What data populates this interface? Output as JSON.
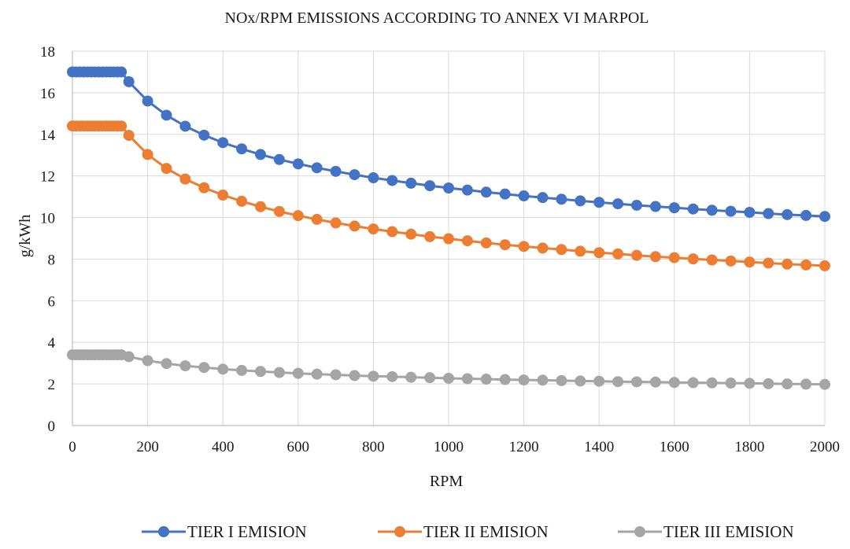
{
  "chart_data": {
    "type": "line",
    "title": "NOx/RPM EMISSIONS ACCORDING TO ANNEX VI MARPOL",
    "xlabel": "RPM",
    "ylabel": "g/kWh",
    "xlim": [
      0,
      2000
    ],
    "ylim": [
      0,
      18
    ],
    "x_ticks": [
      "0",
      "200",
      "400",
      "600",
      "800",
      "1000",
      "1200",
      "1400",
      "1600",
      "1800",
      "2000"
    ],
    "y_ticks": [
      "0",
      "2",
      "4",
      "6",
      "8",
      "10",
      "12",
      "14",
      "16",
      "18"
    ],
    "grid": true,
    "legend_position": "bottom",
    "x": [
      0,
      10,
      20,
      30,
      40,
      50,
      60,
      70,
      80,
      90,
      100,
      110,
      120,
      130,
      150,
      200,
      250,
      300,
      350,
      400,
      450,
      500,
      550,
      600,
      650,
      700,
      750,
      800,
      850,
      900,
      950,
      1000,
      1050,
      1100,
      1150,
      1200,
      1250,
      1300,
      1350,
      1400,
      1450,
      1500,
      1550,
      1600,
      1650,
      1700,
      1750,
      1800,
      1850,
      1900,
      1950,
      2000
    ],
    "series": [
      {
        "name": "TIER I EMISION",
        "color": "#4472C4",
        "values": [
          17,
          17,
          17,
          17,
          17,
          17,
          17,
          17,
          17,
          17,
          17,
          17,
          17,
          17,
          16.53,
          15.6,
          14.92,
          14.39,
          13.96,
          13.6,
          13.3,
          13.03,
          12.79,
          12.58,
          12.39,
          12.22,
          12.06,
          11.91,
          11.78,
          11.65,
          11.53,
          11.42,
          11.32,
          11.22,
          11.13,
          11.04,
          10.96,
          10.88,
          10.8,
          10.73,
          10.66,
          10.59,
          10.53,
          10.47,
          10.41,
          10.35,
          10.3,
          10.25,
          10.19,
          10.14,
          10.1,
          10.05
        ]
      },
      {
        "name": "TIER II EMISION",
        "color": "#ED7D31",
        "values": [
          14.4,
          14.4,
          14.4,
          14.4,
          14.4,
          14.4,
          14.4,
          14.4,
          14.4,
          14.4,
          14.4,
          14.4,
          14.4,
          14.4,
          13.95,
          13.03,
          12.36,
          11.85,
          11.43,
          11.08,
          10.78,
          10.52,
          10.29,
          10.09,
          9.91,
          9.74,
          9.59,
          9.45,
          9.32,
          9.2,
          9.08,
          8.98,
          8.88,
          8.78,
          8.69,
          8.61,
          8.53,
          8.46,
          8.38,
          8.31,
          8.25,
          8.18,
          8.12,
          8.07,
          8.01,
          7.96,
          7.91,
          7.86,
          7.81,
          7.76,
          7.72,
          7.68
        ]
      },
      {
        "name": "TIER III EMISION",
        "color": "#A5A5A5",
        "values": [
          3.4,
          3.4,
          3.4,
          3.4,
          3.4,
          3.4,
          3.4,
          3.4,
          3.4,
          3.4,
          3.4,
          3.4,
          3.4,
          3.4,
          3.31,
          3.12,
          2.98,
          2.87,
          2.79,
          2.71,
          2.65,
          2.6,
          2.55,
          2.51,
          2.47,
          2.44,
          2.4,
          2.37,
          2.35,
          2.32,
          2.3,
          2.27,
          2.25,
          2.23,
          2.21,
          2.19,
          2.18,
          2.16,
          2.14,
          2.13,
          2.11,
          2.1,
          2.09,
          2.07,
          2.06,
          2.05,
          2.04,
          2.03,
          2.01,
          2.0,
          1.99,
          1.98
        ]
      }
    ]
  }
}
